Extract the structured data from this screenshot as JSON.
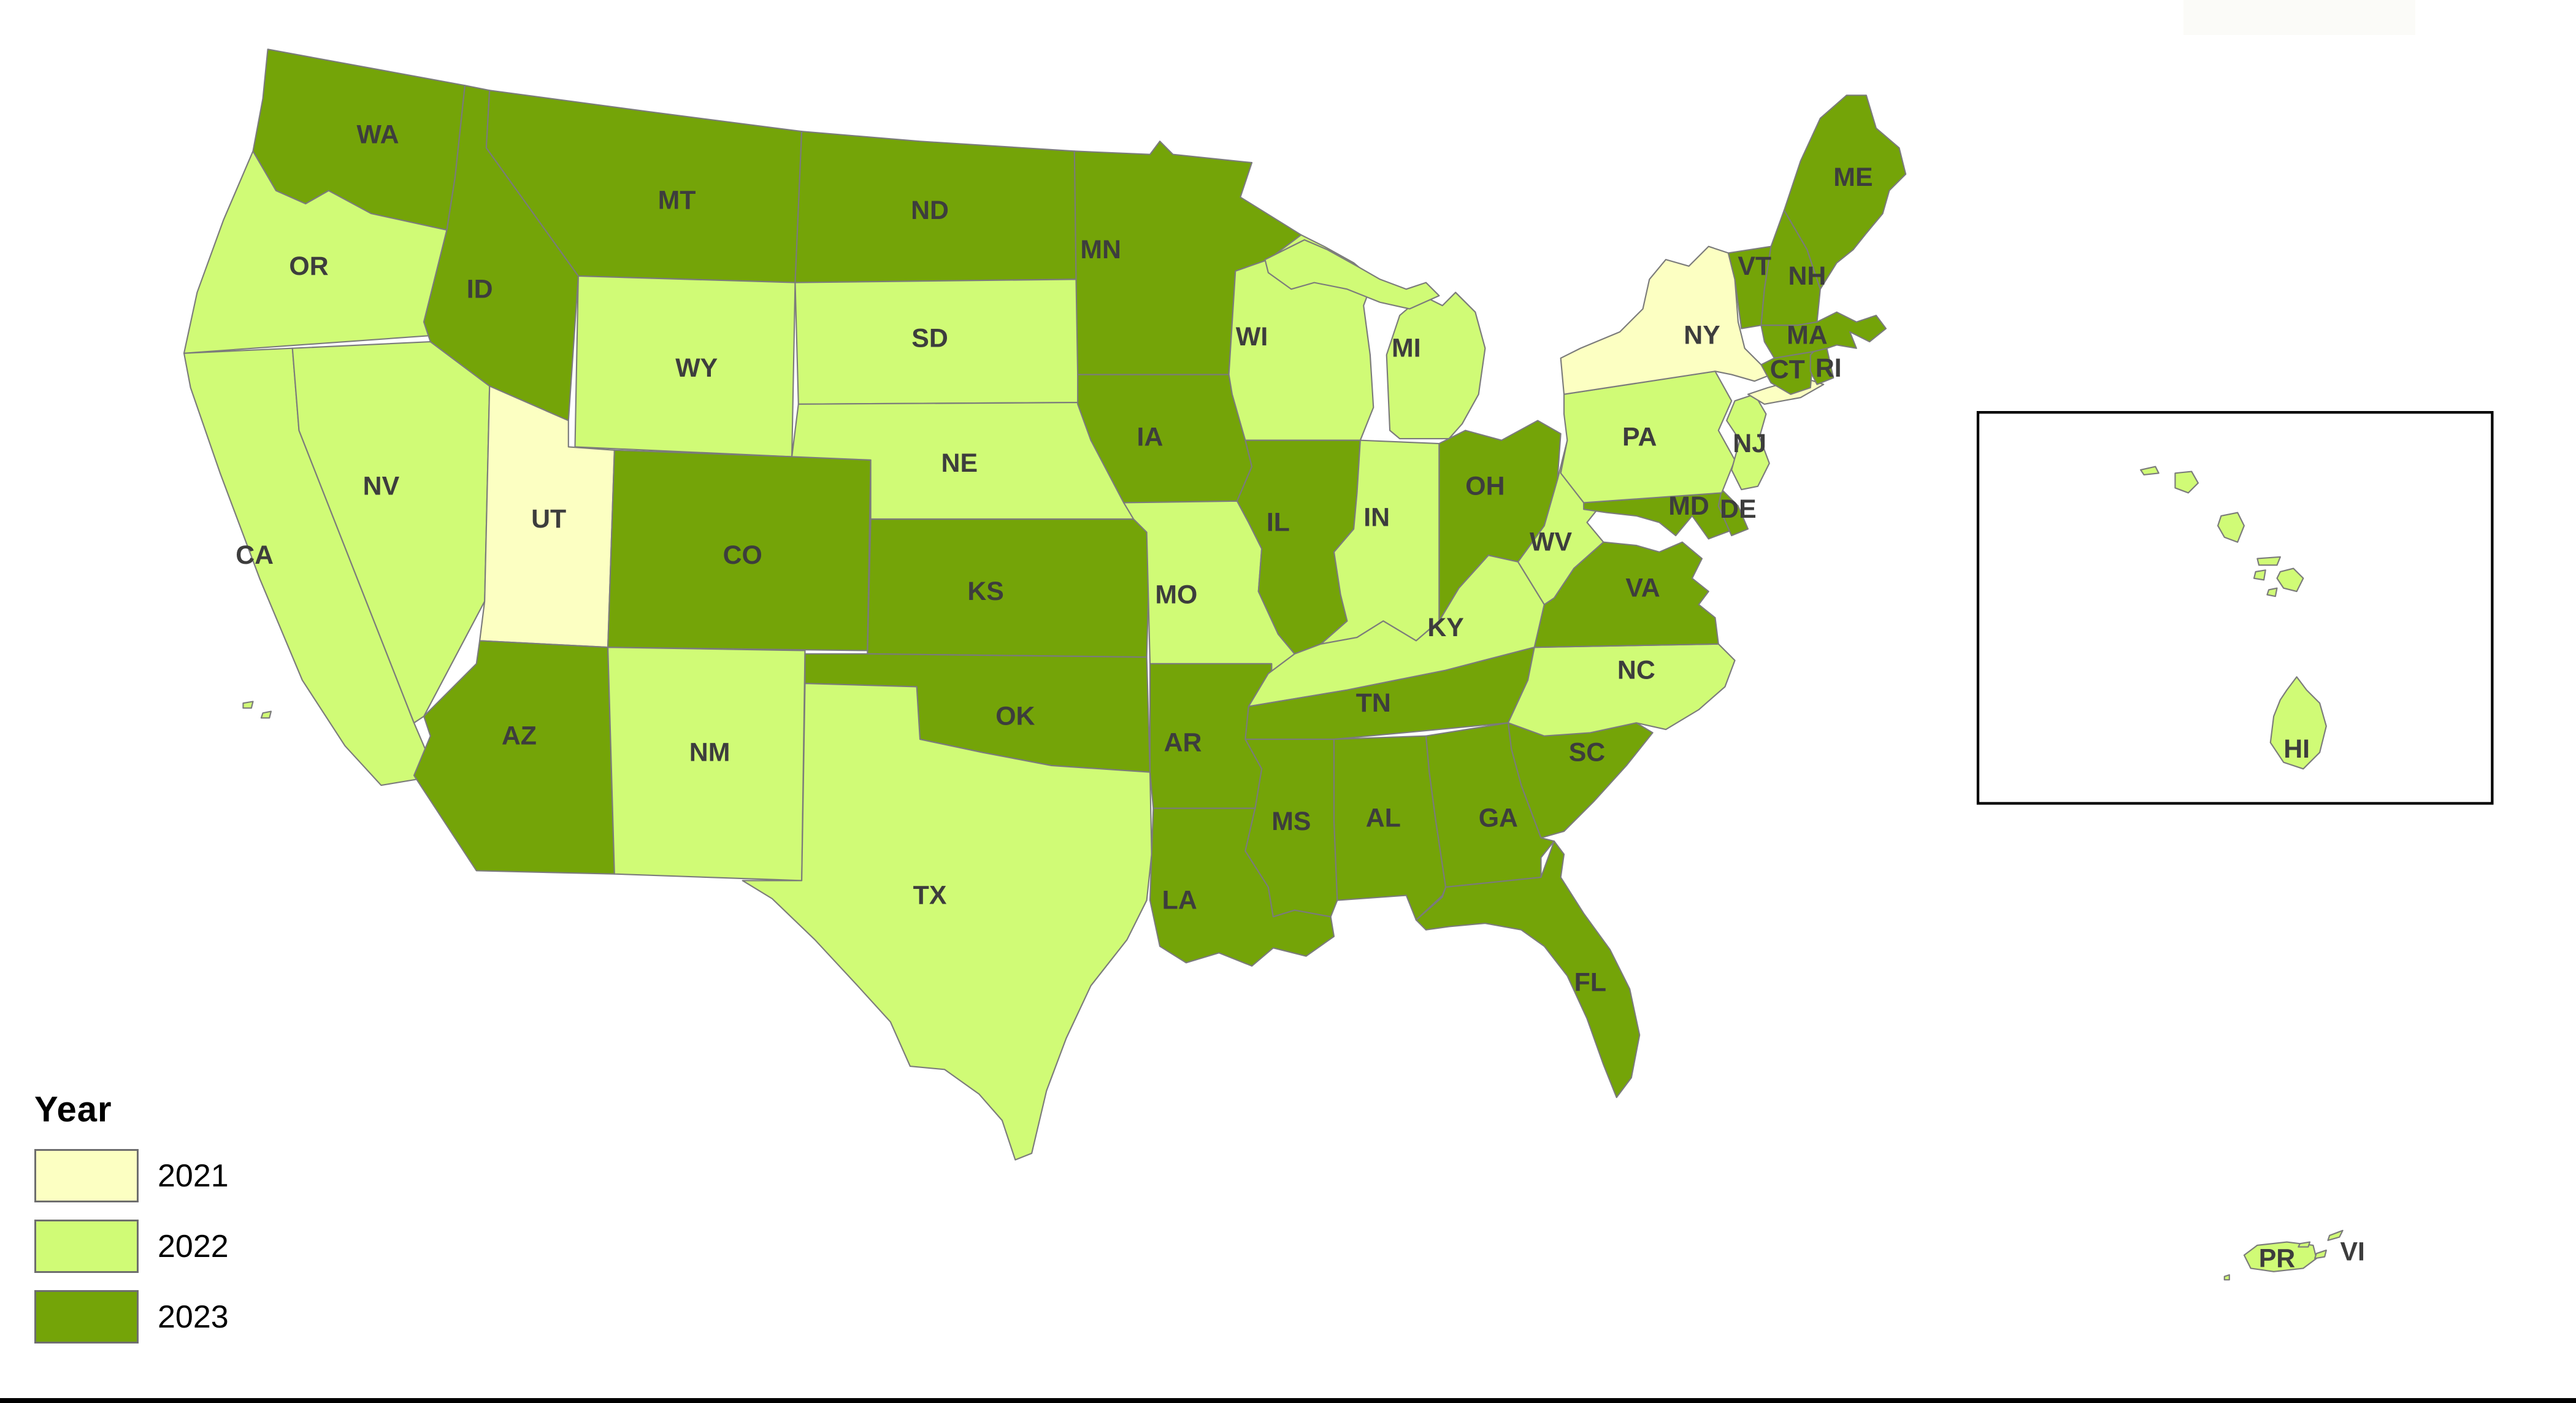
{
  "figure": {
    "background_color": "#FFFFFF",
    "label_color": "#3D3D3D",
    "state_border_color": "#7B7B7B",
    "water_color": "#FFFFFF",
    "bottom_bar_color": "#000000"
  },
  "legend": {
    "title": "Year",
    "swatch_border_color": "#6E6E6E",
    "items": [
      {
        "label": "2021",
        "color": "#FCFFC2"
      },
      {
        "label": "2022",
        "color": "#D0FB76"
      },
      {
        "label": "2023",
        "color": "#74A408"
      }
    ]
  },
  "inset": {
    "name": "hawaii-inset",
    "border_color": "#000000",
    "fill": "#FFFFFF"
  },
  "states": [
    {
      "id": "CA",
      "label": "CA",
      "year": "2022"
    },
    {
      "id": "OR",
      "label": "OR",
      "year": "2022"
    },
    {
      "id": "WA",
      "label": "WA",
      "year": "2023"
    },
    {
      "id": "NV",
      "label": "NV",
      "year": "2022"
    },
    {
      "id": "ID",
      "label": "ID",
      "year": "2023"
    },
    {
      "id": "MT",
      "label": "MT",
      "year": "2023"
    },
    {
      "id": "WY",
      "label": "WY",
      "year": "2022"
    },
    {
      "id": "UT",
      "label": "UT",
      "year": "2021"
    },
    {
      "id": "CO",
      "label": "CO",
      "year": "2023"
    },
    {
      "id": "AZ",
      "label": "AZ",
      "year": "2023"
    },
    {
      "id": "NM",
      "label": "NM",
      "year": "2022"
    },
    {
      "id": "ND",
      "label": "ND",
      "year": "2023"
    },
    {
      "id": "SD",
      "label": "SD",
      "year": "2022"
    },
    {
      "id": "NE",
      "label": "NE",
      "year": "2022"
    },
    {
      "id": "KS",
      "label": "KS",
      "year": "2023"
    },
    {
      "id": "OK",
      "label": "OK",
      "year": "2023"
    },
    {
      "id": "TX",
      "label": "TX",
      "year": "2022"
    },
    {
      "id": "MN",
      "label": "MN",
      "year": "2023"
    },
    {
      "id": "IA",
      "label": "IA",
      "year": "2023"
    },
    {
      "id": "MO",
      "label": "MO",
      "year": "2022"
    },
    {
      "id": "AR",
      "label": "AR",
      "year": "2023"
    },
    {
      "id": "LA",
      "label": "LA",
      "year": "2023"
    },
    {
      "id": "WI",
      "label": "WI",
      "year": "2022"
    },
    {
      "id": "IL",
      "label": "IL",
      "year": "2023"
    },
    {
      "id": "MI",
      "label": "MI",
      "year": "2022"
    },
    {
      "id": "IN",
      "label": "IN",
      "year": "2022"
    },
    {
      "id": "OH",
      "label": "OH",
      "year": "2023"
    },
    {
      "id": "KY",
      "label": "KY",
      "year": "2022"
    },
    {
      "id": "TN",
      "label": "TN",
      "year": "2023"
    },
    {
      "id": "MS",
      "label": "MS",
      "year": "2023"
    },
    {
      "id": "AL",
      "label": "AL",
      "year": "2023"
    },
    {
      "id": "GA",
      "label": "GA",
      "year": "2023"
    },
    {
      "id": "FL",
      "label": "FL",
      "year": "2023"
    },
    {
      "id": "SC",
      "label": "SC",
      "year": "2023"
    },
    {
      "id": "NC",
      "label": "NC",
      "year": "2022"
    },
    {
      "id": "VA",
      "label": "VA",
      "year": "2023"
    },
    {
      "id": "WV",
      "label": "WV",
      "year": "2022"
    },
    {
      "id": "MD",
      "label": "MD",
      "year": "2023"
    },
    {
      "id": "DE",
      "label": "DE",
      "year": "2023"
    },
    {
      "id": "PA",
      "label": "PA",
      "year": "2022"
    },
    {
      "id": "NJ",
      "label": "NJ",
      "year": "2022"
    },
    {
      "id": "NY",
      "label": "NY",
      "year": "2021"
    },
    {
      "id": "VT",
      "label": "VT",
      "year": "2023"
    },
    {
      "id": "NH",
      "label": "NH",
      "year": "2023"
    },
    {
      "id": "ME",
      "label": "ME",
      "year": "2023"
    },
    {
      "id": "MA",
      "label": "MA",
      "year": "2023"
    },
    {
      "id": "CT",
      "label": "CT",
      "year": "2023"
    },
    {
      "id": "RI",
      "label": "RI",
      "year": "2023"
    },
    {
      "id": "HI",
      "label": "HI",
      "year": "2022"
    },
    {
      "id": "PR",
      "label": "PR",
      "year": "2022"
    },
    {
      "id": "VI",
      "label": "VI",
      "year": "2022"
    }
  ],
  "chart_data": {
    "type": "choropleth_map",
    "legend_title": "Year",
    "categories": [
      "2021",
      "2022",
      "2023"
    ],
    "groups": {
      "2021": [
        "NY",
        "UT"
      ],
      "2022": [
        "CA",
        "OR",
        "NV",
        "WY",
        "SD",
        "NE",
        "NM",
        "TX",
        "MO",
        "WI",
        "MI",
        "IN",
        "KY",
        "WV",
        "PA",
        "NJ",
        "NC",
        "HI",
        "PR",
        "VI"
      ],
      "2023": [
        "WA",
        "ID",
        "MT",
        "ND",
        "MN",
        "IA",
        "IL",
        "OH",
        "CO",
        "KS",
        "AZ",
        "OK",
        "AR",
        "LA",
        "MS",
        "AL",
        "TN",
        "GA",
        "SC",
        "FL",
        "VA",
        "MD",
        "DE",
        "VT",
        "NH",
        "ME",
        "MA",
        "CT",
        "RI"
      ]
    },
    "legend_position": "bottom-left",
    "insets": [
      "HI"
    ],
    "territories": [
      "PR",
      "VI"
    ]
  }
}
